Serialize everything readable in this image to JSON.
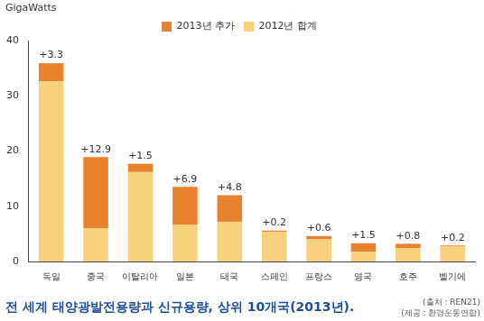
{
  "chart_data": {
    "type": "bar",
    "title": "전 세계 태양광발전용량과 신규용량, 상위 10개국(2013년).",
    "y_label": "GigaWatts",
    "annotations": [
      "(출처 : REN21)",
      "(제공 : 환경운동연합)"
    ],
    "categories": [
      "독일",
      "중국",
      "이탈리아",
      "일본",
      "태국",
      "스페인",
      "프랑스",
      "영국",
      "호주",
      "벨기에"
    ],
    "series": [
      {
        "name": "2012년 합계",
        "color": "#f8d17c",
        "values": [
          32.6,
          6.0,
          16.2,
          6.6,
          7.2,
          5.4,
          4.0,
          1.8,
          2.4,
          2.7
        ]
      },
      {
        "name": "2013년 추가",
        "color": "#e8822f",
        "values": [
          3.3,
          12.9,
          1.5,
          6.9,
          4.8,
          0.2,
          0.6,
          1.5,
          0.8,
          0.2
        ],
        "data_labels": true,
        "value_labels": [
          "+3.3",
          "+12.9",
          "+1.5",
          "+6.9",
          "+4.8",
          "+0.2",
          "+0.6",
          "+1.5",
          "+0.8",
          "+0.2"
        ]
      }
    ],
    "stacked": true,
    "ylim": [
      0,
      40
    ],
    "yticks": [
      0,
      10,
      20,
      30,
      40
    ],
    "grid": false,
    "legend": "top"
  }
}
